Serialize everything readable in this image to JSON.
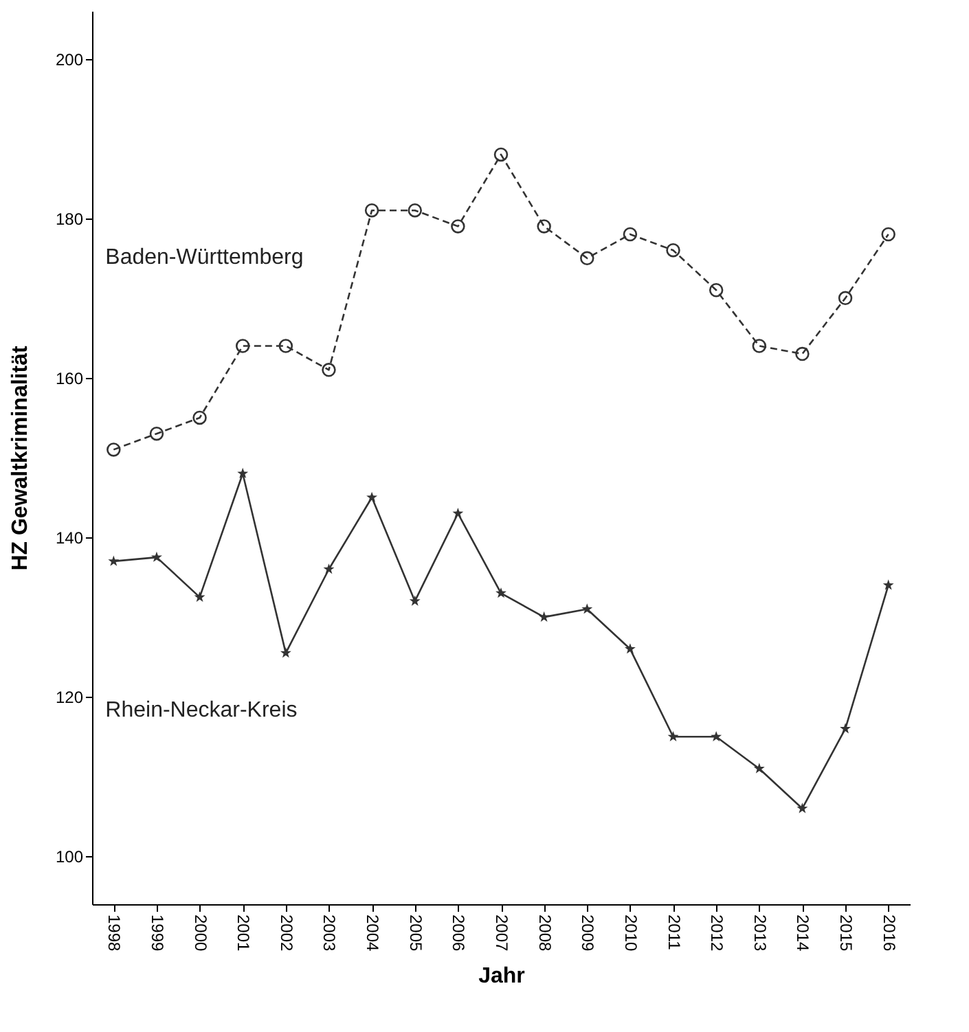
{
  "chart_data": {
    "type": "line",
    "xlabel": "Jahr",
    "ylabel": "HZ Gewaltkriminalität",
    "categories": [
      "1998",
      "1999",
      "2000",
      "2001",
      "2002",
      "2003",
      "2004",
      "2005",
      "2006",
      "2007",
      "2008",
      "2009",
      "2010",
      "2011",
      "2012",
      "2013",
      "2014",
      "2015",
      "2016"
    ],
    "series": [
      {
        "name": "Baden-Württemberg",
        "color": "#333333",
        "marker": "circle",
        "line_style": "dashed",
        "values": [
          151,
          153,
          155,
          164,
          164,
          161,
          181,
          181,
          179,
          188,
          179,
          175,
          178,
          176,
          171,
          164,
          163,
          170,
          178
        ]
      },
      {
        "name": "Rhein-Neckar-Kreis",
        "color": "#333333",
        "marker": "star",
        "line_style": "solid",
        "values": [
          137,
          137.5,
          132.5,
          148,
          125.5,
          136,
          145,
          132,
          143,
          133,
          130,
          131,
          126,
          115,
          115,
          111,
          106,
          116,
          134
        ]
      }
    ],
    "ylim": [
      94,
      206
    ],
    "yticks": [
      100,
      120,
      140,
      160,
      180,
      200
    ],
    "grid": false
  }
}
